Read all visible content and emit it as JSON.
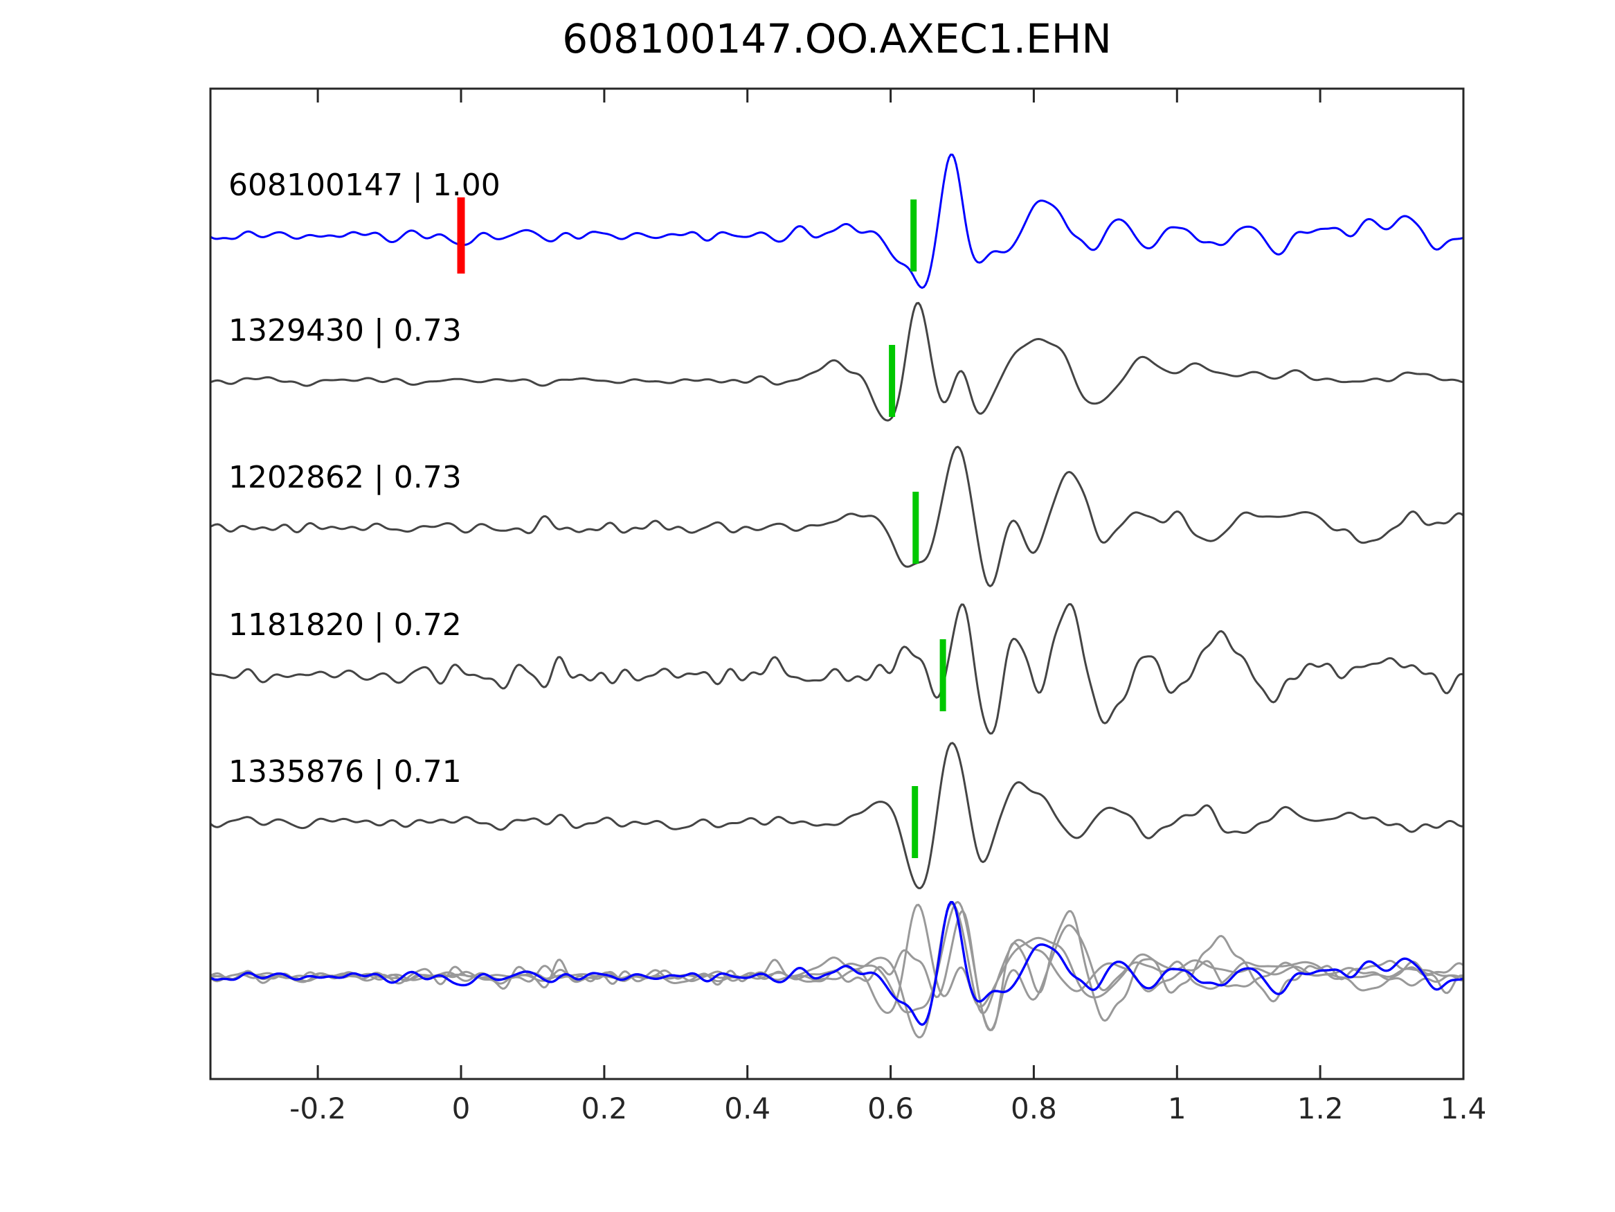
{
  "chart_data": {
    "type": "line",
    "title": "608100147.OO.AXEC1.EHN",
    "xlabel": "",
    "ylabel": "",
    "xlim": [
      -0.35,
      1.4
    ],
    "xticks": [
      -0.2,
      0,
      0.2,
      0.4,
      0.6,
      0.8,
      1.0,
      1.2,
      1.4
    ],
    "xtick_labels": [
      "-0.2",
      "0",
      "0.2",
      "0.4",
      "0.6",
      "0.8",
      "1",
      "1.2",
      "1.4"
    ],
    "grid": false,
    "legend": null,
    "colors": {
      "template_trace": "#0000ff",
      "detection_trace": "#444444",
      "overlay_gray": "#999999",
      "pick_marker": "#00c800",
      "origin_marker": "#ff0000",
      "axis": "#262626",
      "text": "#000000",
      "background": "#ffffff"
    },
    "traces": [
      {
        "id": "608100147",
        "correlation": "1.00",
        "label_text": "608100147 | 1.00",
        "color": "#0000ff",
        "row": 0,
        "pick_time": 0.632,
        "pick_color": "#00c800",
        "origin_marker": {
          "time": 0.0,
          "color": "#ff0000"
        },
        "seed": 11,
        "noise_amp": 13,
        "noise_bursts": [],
        "components": [
          [
            -0.005,
            -14,
            0.012
          ],
          [
            0.54,
            14,
            0.025
          ],
          [
            0.612,
            -28,
            0.022
          ],
          [
            0.648,
            -75,
            0.015
          ],
          [
            0.684,
            118,
            0.016
          ],
          [
            0.718,
            -48,
            0.016
          ],
          [
            0.74,
            12,
            0.01
          ],
          [
            0.765,
            -30,
            0.018
          ],
          [
            0.8,
            40,
            0.018
          ],
          [
            0.835,
            34,
            0.018
          ],
          [
            0.875,
            -25,
            0.02
          ],
          [
            0.915,
            26,
            0.018
          ],
          [
            0.955,
            -18,
            0.018
          ],
          [
            1.0,
            14,
            0.02
          ],
          [
            1.05,
            -16,
            0.02
          ],
          [
            1.1,
            14,
            0.018
          ],
          [
            1.145,
            -22,
            0.02
          ],
          [
            1.19,
            16,
            0.015
          ],
          [
            1.27,
            18,
            0.02
          ],
          [
            1.32,
            20,
            0.018
          ],
          [
            1.37,
            -12,
            0.02
          ]
        ]
      },
      {
        "id": "1329430",
        "correlation": "0.73",
        "label_text": "1329430 | 0.73",
        "color": "#444444",
        "row": 1,
        "pick_time": 0.602,
        "pick_color": "#00c800",
        "origin_marker": null,
        "seed": 22,
        "noise_amp": 8,
        "noise_bursts": [],
        "components": [
          [
            0.525,
            22,
            0.03
          ],
          [
            0.597,
            -62,
            0.018
          ],
          [
            0.638,
            118,
            0.015
          ],
          [
            0.672,
            -42,
            0.013
          ],
          [
            0.7,
            26,
            0.011
          ],
          [
            0.728,
            -50,
            0.016
          ],
          [
            0.785,
            42,
            0.025
          ],
          [
            0.825,
            44,
            0.022
          ],
          [
            0.878,
            -28,
            0.018
          ],
          [
            0.9,
            -12,
            0.015
          ],
          [
            0.955,
            32,
            0.02
          ],
          [
            1.03,
            26,
            0.02
          ],
          [
            1.1,
            10,
            0.02
          ],
          [
            1.16,
            12,
            0.02
          ],
          [
            1.33,
            10,
            0.025
          ]
        ]
      },
      {
        "id": "1202862",
        "correlation": "0.73",
        "label_text": "1202862 | 0.73",
        "color": "#444444",
        "row": 2,
        "pick_time": 0.635,
        "pick_color": "#00c800",
        "origin_marker": null,
        "seed": 33,
        "noise_amp": 12,
        "noise_bursts": [
          [
            0.0,
            0.35,
            0.4
          ]
        ],
        "components": [
          [
            0.555,
            22,
            0.028
          ],
          [
            0.625,
            -58,
            0.02
          ],
          [
            0.655,
            -15,
            0.012
          ],
          [
            0.695,
            122,
            0.017
          ],
          [
            0.737,
            -88,
            0.017
          ],
          [
            0.77,
            28,
            0.012
          ],
          [
            0.8,
            -38,
            0.016
          ],
          [
            0.85,
            78,
            0.022
          ],
          [
            0.9,
            -25,
            0.018
          ],
          [
            0.94,
            22,
            0.018
          ],
          [
            0.995,
            18,
            0.02
          ],
          [
            1.045,
            -20,
            0.02
          ],
          [
            1.12,
            22,
            0.03
          ],
          [
            1.185,
            18,
            0.02
          ],
          [
            1.26,
            -18,
            0.025
          ],
          [
            1.33,
            14,
            0.02
          ],
          [
            1.395,
            18,
            0.015
          ]
        ]
      },
      {
        "id": "1181820",
        "correlation": "0.72",
        "label_text": "1181820 | 0.72",
        "color": "#444444",
        "row": 3,
        "pick_time": 0.673,
        "pick_color": "#00c800",
        "origin_marker": null,
        "seed": 44,
        "noise_amp": 13,
        "noise_bursts": [
          [
            -0.05,
            0.17,
            1.6
          ]
        ],
        "components": [
          [
            0.44,
            18,
            0.015
          ],
          [
            0.47,
            -14,
            0.012
          ],
          [
            0.63,
            36,
            0.02
          ],
          [
            0.668,
            -50,
            0.013
          ],
          [
            0.7,
            118,
            0.015
          ],
          [
            0.737,
            -92,
            0.017
          ],
          [
            0.775,
            62,
            0.016
          ],
          [
            0.81,
            -45,
            0.015
          ],
          [
            0.848,
            112,
            0.02
          ],
          [
            0.9,
            -72,
            0.022
          ],
          [
            0.955,
            28,
            0.018
          ],
          [
            1.0,
            -22,
            0.018
          ],
          [
            1.06,
            58,
            0.025
          ],
          [
            1.13,
            -32,
            0.02
          ],
          [
            1.19,
            18,
            0.018
          ],
          [
            1.3,
            22,
            0.03
          ],
          [
            1.38,
            -14,
            0.02
          ]
        ]
      },
      {
        "id": "1335876",
        "correlation": "0.71",
        "label_text": "1335876 | 0.71",
        "color": "#444444",
        "row": 4,
        "pick_time": 0.634,
        "pick_color": "#00c800",
        "origin_marker": null,
        "seed": 55,
        "noise_amp": 12,
        "noise_bursts": [
          [
            0.02,
            0.22,
            0.7
          ]
        ],
        "components": [
          [
            0.3,
            -14,
            0.012
          ],
          [
            0.585,
            26,
            0.02
          ],
          [
            0.642,
            -98,
            0.016
          ],
          [
            0.687,
            122,
            0.016
          ],
          [
            0.728,
            -60,
            0.017
          ],
          [
            0.765,
            30,
            0.014
          ],
          [
            0.8,
            48,
            0.025
          ],
          [
            0.855,
            -28,
            0.02
          ],
          [
            0.91,
            24,
            0.02
          ],
          [
            0.965,
            -18,
            0.02
          ],
          [
            1.03,
            16,
            0.02
          ],
          [
            1.09,
            -14,
            0.02
          ],
          [
            1.15,
            14,
            0.02
          ],
          [
            1.24,
            12,
            0.025
          ],
          [
            1.32,
            -12,
            0.02
          ]
        ]
      }
    ],
    "overlay_row": {
      "description": "all five traces overlaid, template in blue on top of gray detections",
      "gray_trace_indices": [
        1,
        2,
        3,
        4
      ],
      "blue_trace_index": 0,
      "gray_color": "#999999",
      "scale": 0.92
    }
  }
}
